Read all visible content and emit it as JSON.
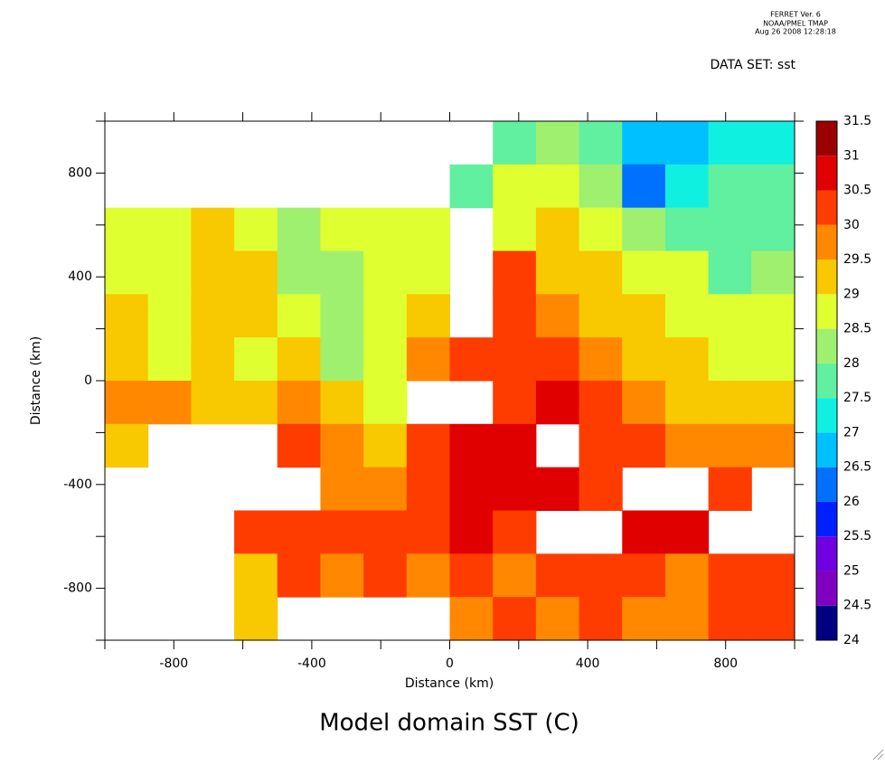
{
  "chart_data": {
    "type": "contour",
    "title": "Model domain SST (C)",
    "header": [
      "FERRET Ver. 6",
      "NOAA/PMEL TMAP",
      "Aug 26 2008 12:28:18"
    ],
    "dataset": "DATA SET: sst",
    "xlabel": "Distance (km)",
    "ylabel": "Distance (km)",
    "xlim": [
      -1000,
      1000
    ],
    "ylim": [
      -1000,
      1000
    ],
    "xticks": [
      -800,
      -400,
      0,
      400,
      800
    ],
    "yticks": [
      -800,
      -400,
      0,
      400,
      800
    ],
    "xminorticks": [
      -1000,
      -600,
      -200,
      200,
      600,
      1000
    ],
    "yminorticks": [
      -1000,
      -600,
      -200,
      200,
      600,
      1000
    ],
    "levels": [
      24,
      24.5,
      25,
      25.5,
      26,
      26.5,
      27,
      27.5,
      28,
      28.5,
      29,
      29.5,
      30,
      30.5,
      31,
      31.5
    ],
    "colors": [
      "#000080",
      "#8000c0",
      "#7000e0",
      "#0020ff",
      "#0070ff",
      "#00c0ff",
      "#10f0e0",
      "#60f0a0",
      "#a0f070",
      "#e0ff30",
      "#f8c800",
      "#ff8800",
      "#ff3c00",
      "#e00000",
      "#9b0000"
    ],
    "x": [
      -937.5,
      -812.5,
      -687.5,
      -562.5,
      -437.5,
      -312.5,
      -187.5,
      -62.5,
      62.5,
      187.5,
      312.5,
      437.5,
      562.5,
      687.5,
      812.5,
      937.5
    ],
    "y": [
      916.7,
      750,
      583.3,
      416.7,
      250,
      83.3,
      -83.3,
      -250,
      -416.7,
      -583.3,
      -750,
      -916.7
    ],
    "z": [
      [
        null,
        null,
        null,
        null,
        null,
        null,
        null,
        null,
        null,
        27.8,
        28.3,
        27.7,
        26.7,
        26.8,
        27.3,
        27.3
      ],
      [
        null,
        null,
        null,
        null,
        null,
        null,
        null,
        null,
        27.8,
        28.8,
        28.7,
        28.2,
        26.3,
        27.3,
        27.7,
        27.7
      ],
      [
        28.7,
        28.7,
        29.2,
        28.6,
        28.3,
        28.7,
        28.7,
        28.7,
        null,
        28.8,
        29.2,
        28.7,
        28.3,
        27.7,
        27.8,
        27.7
      ],
      [
        28.7,
        28.7,
        29.2,
        29.2,
        28.3,
        28.2,
        28.7,
        28.7,
        null,
        30.2,
        29.2,
        29.2,
        28.7,
        28.7,
        27.8,
        28.2
      ],
      [
        29.2,
        28.7,
        29.2,
        29.2,
        28.7,
        28.2,
        28.7,
        29.2,
        null,
        30.2,
        29.7,
        29.2,
        29.2,
        28.7,
        28.7,
        28.7
      ],
      [
        29.2,
        28.7,
        29.2,
        28.7,
        29.2,
        28.2,
        28.7,
        29.7,
        30.2,
        30.2,
        30.2,
        29.7,
        29.2,
        29.2,
        28.7,
        28.7
      ],
      [
        29.7,
        29.7,
        29.2,
        29.2,
        29.7,
        29.2,
        28.7,
        null,
        null,
        30.2,
        30.7,
        30.2,
        29.7,
        29.2,
        29.2,
        29.2
      ],
      [
        29.2,
        null,
        null,
        null,
        30.2,
        29.7,
        29.2,
        30.2,
        30.7,
        30.7,
        null,
        30.2,
        30.2,
        29.7,
        29.7,
        29.7
      ],
      [
        null,
        null,
        null,
        null,
        null,
        29.7,
        29.7,
        30.2,
        30.7,
        30.7,
        30.7,
        30.2,
        null,
        null,
        30.2,
        null
      ],
      [
        null,
        null,
        null,
        30.2,
        30.2,
        30.2,
        30.2,
        30.2,
        30.7,
        30.2,
        null,
        null,
        30.7,
        30.7,
        null,
        null
      ],
      [
        null,
        null,
        null,
        29.2,
        30.2,
        29.7,
        30.2,
        29.7,
        30.2,
        29.7,
        30.2,
        30.2,
        30.2,
        29.7,
        30.2,
        30.2
      ],
      [
        null,
        null,
        null,
        29.2,
        null,
        null,
        null,
        null,
        29.7,
        30.2,
        29.7,
        30.2,
        29.7,
        29.7,
        30.2,
        30.2
      ]
    ]
  }
}
